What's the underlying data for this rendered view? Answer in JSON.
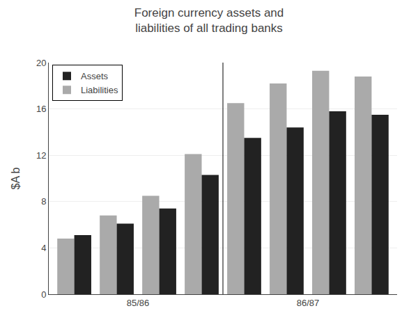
{
  "chart_data": {
    "type": "bar",
    "title": "Foreign currency assets and\nliabilities of all trading banks",
    "y_label": "$A b",
    "categories": [
      "85/86",
      null,
      null,
      null,
      "86/87",
      null,
      null,
      null
    ],
    "series": [
      {
        "name": "Liabilities",
        "color": "#aaaaaa",
        "values": [
          4.8,
          6.8,
          8.5,
          12.1,
          16.5,
          18.2,
          19.3,
          18.8
        ]
      },
      {
        "name": "Assets",
        "color": "#222222",
        "values": [
          5.1,
          6.1,
          7.4,
          10.3,
          13.5,
          14.4,
          15.8,
          15.5
        ]
      }
    ],
    "ylim": [
      0,
      20
    ],
    "yticks": [
      0,
      4,
      8,
      12,
      16,
      20
    ],
    "grid": true,
    "legend": "upper left"
  }
}
